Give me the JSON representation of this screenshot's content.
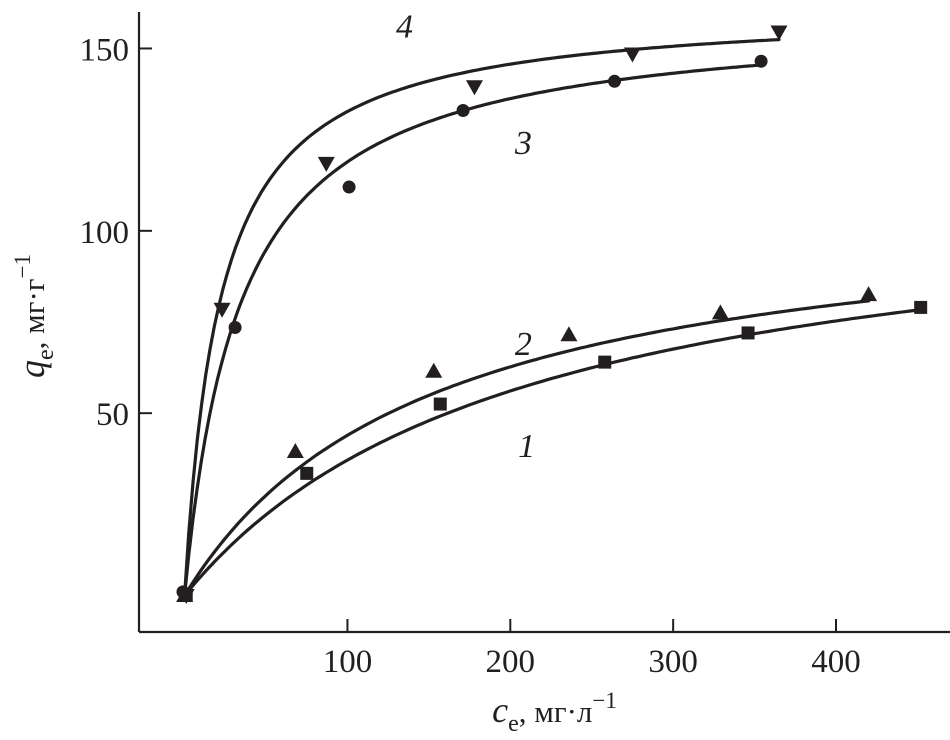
{
  "chart_data": {
    "type": "scatter",
    "x_axis": {
      "label_symbol": "c",
      "label_subscript": "e",
      "label_units": ", мг·л",
      "label_exponent": "−1",
      "range": [
        -28,
        470
      ],
      "ticks": [
        100,
        200,
        300,
        400
      ],
      "tick_labels": [
        "100",
        "200",
        "300",
        "400"
      ]
    },
    "y_axis": {
      "label_symbol": "q",
      "label_subscript": "e",
      "label_units": ", мг·г",
      "label_exponent": "−1",
      "range": [
        -10,
        160
      ],
      "ticks": [
        50,
        100,
        150
      ],
      "tick_labels": [
        "50",
        "100",
        "150"
      ]
    },
    "grid": false,
    "legend": "none; series numbered directly on curves",
    "series": [
      {
        "label": "1",
        "marker": "square",
        "points": [
          [
            1,
            0
          ],
          [
            75,
            33.5
          ],
          [
            157,
            52.5
          ],
          [
            258,
            64
          ],
          [
            346,
            72
          ],
          [
            452,
            79
          ]
        ],
        "fit": {
          "qmax": 114.5,
          "k": 0.0048
        }
      },
      {
        "label": "2",
        "marker": "triangle-up",
        "points": [
          [
            0,
            0
          ],
          [
            68,
            39.5
          ],
          [
            153,
            61.5
          ],
          [
            236,
            71.5
          ],
          [
            329,
            77.5
          ],
          [
            420,
            82.5
          ]
        ],
        "fit": {
          "qmax": 109.5,
          "k": 0.0067
        }
      },
      {
        "label": "3",
        "marker": "circle",
        "points": [
          [
            -1,
            1
          ],
          [
            31,
            73.5
          ],
          [
            101,
            112
          ],
          [
            171,
            133
          ],
          [
            264,
            141
          ],
          [
            354,
            146.5
          ]
        ],
        "fit": {
          "qmax": 159.5,
          "k": 0.0293
        }
      },
      {
        "label": "4",
        "marker": "triangle-down",
        "points": [
          [
            1,
            0
          ],
          [
            23,
            78.5
          ],
          [
            87,
            118.5
          ],
          [
            178,
            139.5
          ],
          [
            275,
            148.5
          ],
          [
            365,
            154.5
          ]
        ],
        "fit": {
          "qmax": 161.5,
          "k": 0.0461
        }
      }
    ]
  }
}
